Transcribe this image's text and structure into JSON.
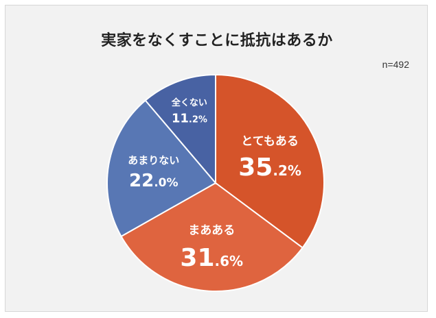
{
  "chart_data": {
    "type": "pie",
    "title": "実家をなくすことに抵抗はあるか",
    "note": "n=492",
    "slices": [
      {
        "label": "とてもある",
        "value": 35.2,
        "int": "35",
        "dec": ".2%",
        "color": "#d5542a"
      },
      {
        "label": "まあある",
        "value": 31.6,
        "int": "31",
        "dec": ".6%",
        "color": "#df643f"
      },
      {
        "label": "あまりない",
        "value": 22.0,
        "int": "22",
        "dec": ".0%",
        "color": "#5877b4"
      },
      {
        "label": "全くない",
        "value": 11.2,
        "int": "11",
        "dec": ".2%",
        "color": "#4862a3"
      }
    ]
  }
}
